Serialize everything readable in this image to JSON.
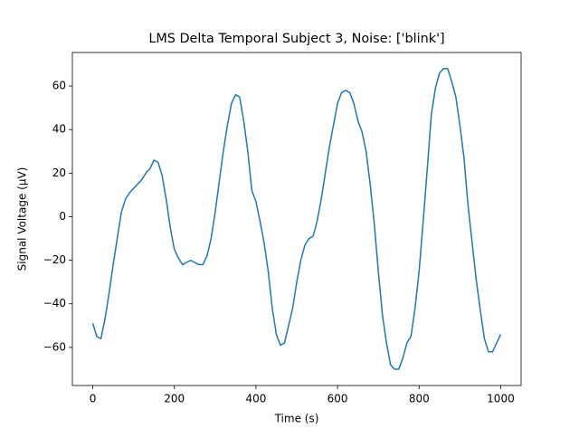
{
  "chart_data": {
    "type": "line",
    "title": "LMS Delta Temporal Subject 3, Noise: ['blink']",
    "xlabel": "Time (s)",
    "ylabel": "Signal Voltage (μV)",
    "xlim": [
      -50,
      1050
    ],
    "ylim": [
      -77.5,
      75.4
    ],
    "xticks": [
      0,
      200,
      400,
      600,
      800,
      1000
    ],
    "yticks": [
      {
        "value": -60,
        "label": "−60"
      },
      {
        "value": -40,
        "label": "−40"
      },
      {
        "value": -20,
        "label": "−20"
      },
      0,
      20,
      40,
      60
    ],
    "series": [
      {
        "color": "#1f77b4",
        "x": [
          0,
          10,
          20,
          30,
          40,
          50,
          60,
          70,
          80,
          90,
          100,
          110,
          120,
          130,
          140,
          150,
          160,
          170,
          180,
          190,
          200,
          210,
          220,
          230,
          240,
          250,
          260,
          270,
          280,
          290,
          300,
          310,
          320,
          330,
          340,
          350,
          360,
          370,
          380,
          390,
          400,
          410,
          420,
          430,
          440,
          450,
          460,
          470,
          480,
          490,
          500,
          510,
          520,
          530,
          540,
          550,
          560,
          570,
          580,
          590,
          600,
          610,
          620,
          630,
          640,
          650,
          660,
          670,
          680,
          690,
          700,
          710,
          720,
          730,
          740,
          750,
          760,
          770,
          780,
          790,
          800,
          810,
          820,
          830,
          840,
          850,
          860,
          870,
          880,
          890,
          900,
          910,
          920,
          930,
          940,
          950,
          960,
          970,
          980,
          990,
          1000
        ],
        "values": [
          -49,
          -55,
          -56,
          -47,
          -35,
          -22,
          -10,
          2,
          8,
          11,
          13,
          15,
          17,
          20,
          22,
          26,
          25,
          19,
          8,
          -5,
          -15,
          -19,
          -22,
          -21,
          -20,
          -21,
          -22,
          -22,
          -18,
          -10,
          2,
          16,
          30,
          42,
          52,
          56,
          55,
          44,
          30,
          12,
          7,
          -2,
          -12,
          -25,
          -42,
          -54,
          -59,
          -58,
          -50,
          -42,
          -30,
          -20,
          -13,
          -10,
          -9,
          -2,
          8,
          20,
          32,
          42,
          52,
          57,
          58,
          57,
          52,
          44,
          39,
          30,
          15,
          -3,
          -25,
          -45,
          -58,
          -68,
          -70,
          -70,
          -65,
          -58,
          -55,
          -42,
          -25,
          -2,
          22,
          47,
          59,
          66,
          68,
          68,
          62,
          55,
          42,
          27,
          5,
          -12,
          -29,
          -43,
          -56,
          -62,
          -62,
          -58,
          -54
        ]
      }
    ]
  }
}
